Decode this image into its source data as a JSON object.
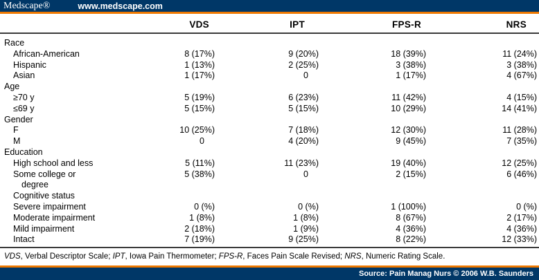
{
  "branding": {
    "logo": "Medscape®",
    "url": "www.medscape.com",
    "navy_color": "#003767",
    "orange_color": "#EE7800"
  },
  "table": {
    "columns": [
      "VDS",
      "IPT",
      "FPS-R",
      "NRS"
    ],
    "rows": [
      {
        "label": "Race",
        "indent": 0,
        "section": true
      },
      {
        "label": "African-American",
        "indent": 1,
        "values": [
          "8 (17%)",
          "9 (20%)",
          "18 (39%)",
          "11 (24%)"
        ]
      },
      {
        "label": "Hispanic",
        "indent": 1,
        "values": [
          "1 (13%)",
          "2 (25%)",
          "3 (38%)",
          "3 (38%)"
        ]
      },
      {
        "label": "Asian",
        "indent": 1,
        "values": [
          "1 (17%)",
          "0",
          "1 (17%)",
          "4 (67%)"
        ]
      },
      {
        "label": "Age",
        "indent": 0,
        "section": true
      },
      {
        "label": "≥70 y",
        "indent": 1,
        "values": [
          "5 (19%)",
          "6 (23%)",
          "11 (42%)",
          "4 (15%)"
        ]
      },
      {
        "label": "≤69 y",
        "indent": 1,
        "values": [
          "5 (15%)",
          "5 (15%)",
          "10 (29%)",
          "14 (41%)"
        ]
      },
      {
        "label": "Gender",
        "indent": 0,
        "section": true
      },
      {
        "label": "F",
        "indent": 1,
        "values": [
          "10 (25%)",
          "7 (18%)",
          "12 (30%)",
          "11 (28%)"
        ]
      },
      {
        "label": "M",
        "indent": 1,
        "values": [
          "0",
          "4 (20%)",
          "9 (45%)",
          "7 (35%)"
        ]
      },
      {
        "label": "Education",
        "indent": 0,
        "section": true
      },
      {
        "label": "High school and less",
        "indent": 1,
        "values": [
          "5 (11%)",
          "11 (23%)",
          "19 (40%)",
          "12 (25%)"
        ]
      },
      {
        "label": "Some college or",
        "label2": "degree",
        "indent": 1,
        "values": [
          "5 (38%)",
          "0",
          "2 (15%)",
          "6 (46%)"
        ]
      },
      {
        "label": "Cognitive status",
        "indent": 1,
        "section": true
      },
      {
        "label": "Severe impairment",
        "indent": 1,
        "values": [
          "0 (%)",
          "0 (%)",
          "1 (100%)",
          "0 (%)"
        ]
      },
      {
        "label": "Moderate impairment",
        "indent": 1,
        "values": [
          "1 (8%)",
          "1 (8%)",
          "8 (67%)",
          "2 (17%)"
        ]
      },
      {
        "label": "Mild impairment",
        "indent": 1,
        "values": [
          "2 (18%)",
          "1 (9%)",
          "4 (36%)",
          "4 (36%)"
        ]
      },
      {
        "label": "Intact",
        "indent": 1,
        "values": [
          "7 (19%)",
          "9 (25%)",
          "8 (22%)",
          "12 (33%)"
        ]
      }
    ]
  },
  "footnote": {
    "segments": [
      {
        "text": "VDS",
        "italic": true
      },
      {
        "text": ", Verbal Descriptor Scale; ",
        "italic": false
      },
      {
        "text": "IPT",
        "italic": true
      },
      {
        "text": ", Iowa Pain Thermometer; ",
        "italic": false
      },
      {
        "text": "FPS-R",
        "italic": true
      },
      {
        "text": ", Faces Pain Scale Revised; ",
        "italic": false
      },
      {
        "text": "NRS",
        "italic": true
      },
      {
        "text": ", Numeric Rating Scale.",
        "italic": false
      }
    ]
  },
  "footer": {
    "source": "Source: Pain Manag Nurs © 2006 W.B. Saunders"
  }
}
